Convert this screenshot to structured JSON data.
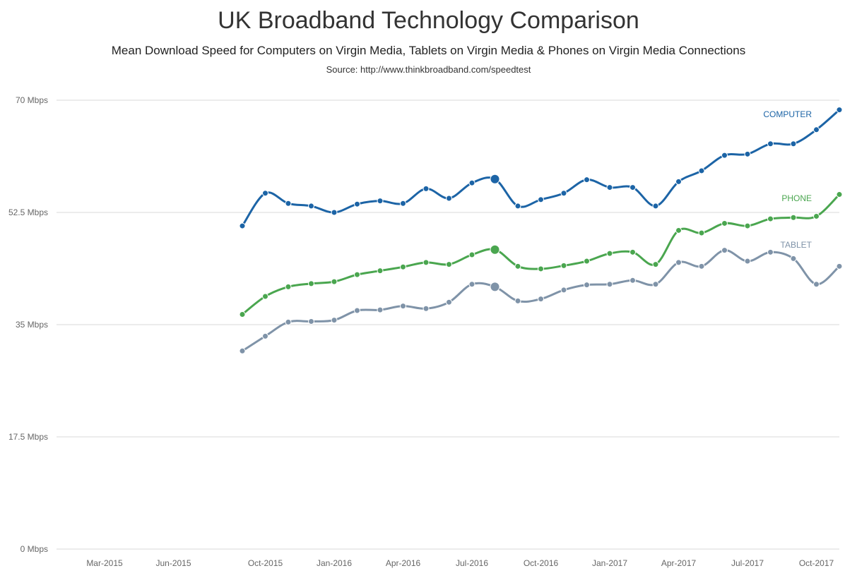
{
  "chart_data": {
    "type": "line",
    "title": "UK Broadband Technology Comparison",
    "subtitle": "Mean Download Speed for Computers on Virgin Media, Tablets on Virgin Media & Phones on Virgin Media Connections",
    "source": "Source: http://www.thinkbroadband.com/speedtest",
    "xlabel": "",
    "ylabel": "",
    "ylim": [
      0,
      70
    ],
    "y_ticks": [
      "0 Mbps",
      "17.5 Mbps",
      "35 Mbps",
      "52.5 Mbps",
      "70 Mbps"
    ],
    "y_tick_values": [
      0,
      17.5,
      35,
      52.5,
      70
    ],
    "xlim": [
      "Jan-2015",
      "Nov-2017"
    ],
    "x_ticks": [
      "Mar-2015",
      "Jun-2015",
      "Oct-2015",
      "Jan-2016",
      "Apr-2016",
      "Jul-2016",
      "Oct-2016",
      "Jan-2017",
      "Apr-2017",
      "Jul-2017",
      "Oct-2017"
    ],
    "grid": true,
    "highlighted_point": "Aug-2016",
    "x": [
      "Sep-2015",
      "Oct-2015",
      "Nov-2015",
      "Dec-2015",
      "Jan-2016",
      "Feb-2016",
      "Mar-2016",
      "Apr-2016",
      "May-2016",
      "Jun-2016",
      "Jul-2016",
      "Aug-2016",
      "Sep-2016",
      "Oct-2016",
      "Nov-2016",
      "Dec-2016",
      "Jan-2017",
      "Feb-2017",
      "Mar-2017",
      "Apr-2017",
      "May-2017",
      "Jun-2017",
      "Jul-2017",
      "Aug-2017",
      "Sep-2017",
      "Oct-2017",
      "Nov-2017"
    ],
    "series": [
      {
        "name": "COMPUTER",
        "color": "#1c64a6",
        "values": [
          50.4,
          55.5,
          53.9,
          53.5,
          52.5,
          53.8,
          54.3,
          53.9,
          56.2,
          54.7,
          57.1,
          57.7,
          53.5,
          54.5,
          55.5,
          57.6,
          56.4,
          56.4,
          53.5,
          57.3,
          59.0,
          61.4,
          61.6,
          63.2,
          63.2,
          65.4,
          68.5
        ]
      },
      {
        "name": "PHONE",
        "color": "#4aa64f",
        "values": [
          36.6,
          39.4,
          40.9,
          41.4,
          41.7,
          42.8,
          43.4,
          44.0,
          44.7,
          44.4,
          45.9,
          46.7,
          44.1,
          43.7,
          44.2,
          44.9,
          46.1,
          46.3,
          44.4,
          49.7,
          49.3,
          50.8,
          50.4,
          51.5,
          51.7,
          51.9,
          55.3
        ]
      },
      {
        "name": "TABLET",
        "color": "#7f93a8",
        "values": [
          30.9,
          33.2,
          35.4,
          35.5,
          35.7,
          37.2,
          37.3,
          37.9,
          37.5,
          38.5,
          41.3,
          40.9,
          38.7,
          39.0,
          40.4,
          41.2,
          41.3,
          41.9,
          41.3,
          44.7,
          44.1,
          46.6,
          44.9,
          46.3,
          45.3,
          41.3,
          44.1
        ]
      }
    ]
  }
}
